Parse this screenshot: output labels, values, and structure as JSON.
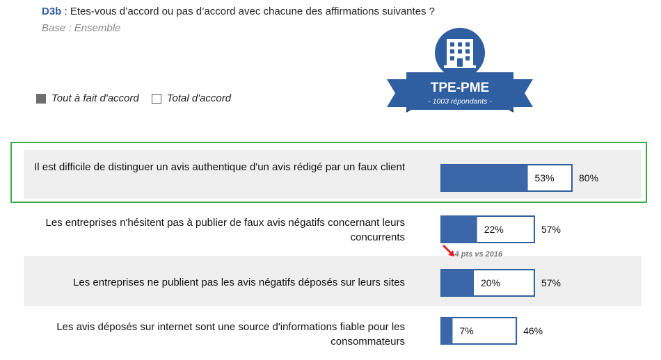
{
  "question": {
    "code": "D3b",
    "text": " : Etes-vous d’accord ou pas d’accord avec chacune des affirmations suivantes ?",
    "base": "Base : Ensemble"
  },
  "legend": {
    "full_agree": "Tout à fait d'accord",
    "total_agree": "Total  d'accord"
  },
  "badge": {
    "title": "TPE-PME",
    "subtitle": "- 1003 répondants -",
    "icon": "building-icon",
    "color": "#2f5fa0"
  },
  "note": {
    "text": "-4 pts vs 2016",
    "icon": "red-arrow-icon",
    "color": "#e02020"
  },
  "colors": {
    "bar_fill": "#3b67a8",
    "bar_outline": "#2f5fa0",
    "highlight": "#3aaa4a"
  },
  "chart_data": {
    "type": "bar",
    "orientation": "horizontal",
    "categories": [
      "Il est difficile de distinguer un avis authentique d'un avis rédigé par un faux client",
      "Les entreprises n'hésitent pas à publier de faux avis négatifs concernant leurs concurrents",
      "Les entreprises ne publient pas les avis négatifs déposés sur leurs sites",
      "Les avis déposés sur internet sont une source d'informations fiable pour les consommateurs"
    ],
    "series": [
      {
        "name": "Tout à fait d'accord",
        "values": [
          53,
          22,
          20,
          7
        ]
      },
      {
        "name": "Total  d'accord",
        "values": [
          80,
          57,
          57,
          46
        ]
      }
    ],
    "full_labels": [
      "53%",
      "22%",
      "20%",
      "7%"
    ],
    "total_labels": [
      "80%",
      "57%",
      "57%",
      "46%"
    ],
    "xlim": [
      0,
      100
    ],
    "highlighted_category": 0
  }
}
